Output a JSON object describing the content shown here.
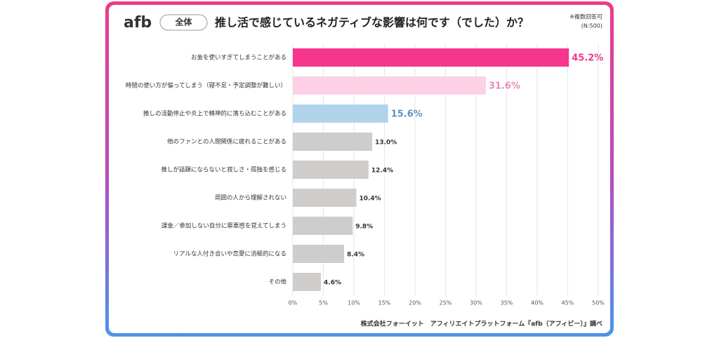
{
  "chart_data": {
    "type": "barh",
    "logo": "afb",
    "badge": "全体",
    "title": "推し活で感じているネガティブな影響は何です（でした）か？",
    "note": "※複数回答可",
    "sample_size": "(N:500)",
    "source": "株式会社フォーイット　アフィリエイトプラットフォーム『afb（アフィビー）』調べ",
    "categories": [
      "お金を使いすぎてしまうことがある",
      "時間の使い方が偏ってしまう（寝不足・予定調整が難しい）",
      "推しの活動停止や炎上で精神的に落ち込むことがある",
      "他のファンとの人間関係に疲れることがある",
      "推しが話題にならないと寂しさ・孤独を感じる",
      "周囲の人から理解されない",
      "課金／参加しない自分に罪悪感を覚えてしまう",
      "リアルな人付き合いや恋愛に消極的になる",
      "その他"
    ],
    "values": [
      45.2,
      31.6,
      15.6,
      13.0,
      12.4,
      10.4,
      9.8,
      8.4,
      4.6
    ],
    "value_labels": [
      "45.2%",
      "31.6%",
      "15.6%",
      "13.0%",
      "12.4%",
      "10.4%",
      "9.8%",
      "8.4%",
      "4.6%"
    ],
    "colors": [
      "#f5358e",
      "#fdd0e6",
      "#b1d4ec",
      "#cfcccc",
      "#cfcccc",
      "#cfcccc",
      "#cfcccc",
      "#cfcccc",
      "#cfcccc"
    ],
    "label_colors": [
      "#ea3a8c",
      "#e58cb9",
      "#5d92c4",
      "#333333",
      "#333333",
      "#333333",
      "#333333",
      "#333333",
      "#333333"
    ],
    "emphasized": [
      true,
      true,
      true,
      false,
      false,
      false,
      false,
      false,
      false
    ],
    "xlim": [
      0,
      50
    ],
    "xticks": [
      {
        "value": 0,
        "label": "0%"
      },
      {
        "value": 5,
        "label": "5%"
      },
      {
        "value": 10,
        "label": "10%"
      },
      {
        "value": 15,
        "label": "15%"
      },
      {
        "value": 20,
        "label": "20%"
      },
      {
        "value": 25,
        "label": "25%"
      },
      {
        "value": 30,
        "label": "30%"
      },
      {
        "value": 35,
        "label": "35%"
      },
      {
        "value": 40,
        "label": "40%"
      },
      {
        "value": 45,
        "label": "45%"
      },
      {
        "value": 50,
        "label": "50%"
      }
    ],
    "grid": true
  }
}
